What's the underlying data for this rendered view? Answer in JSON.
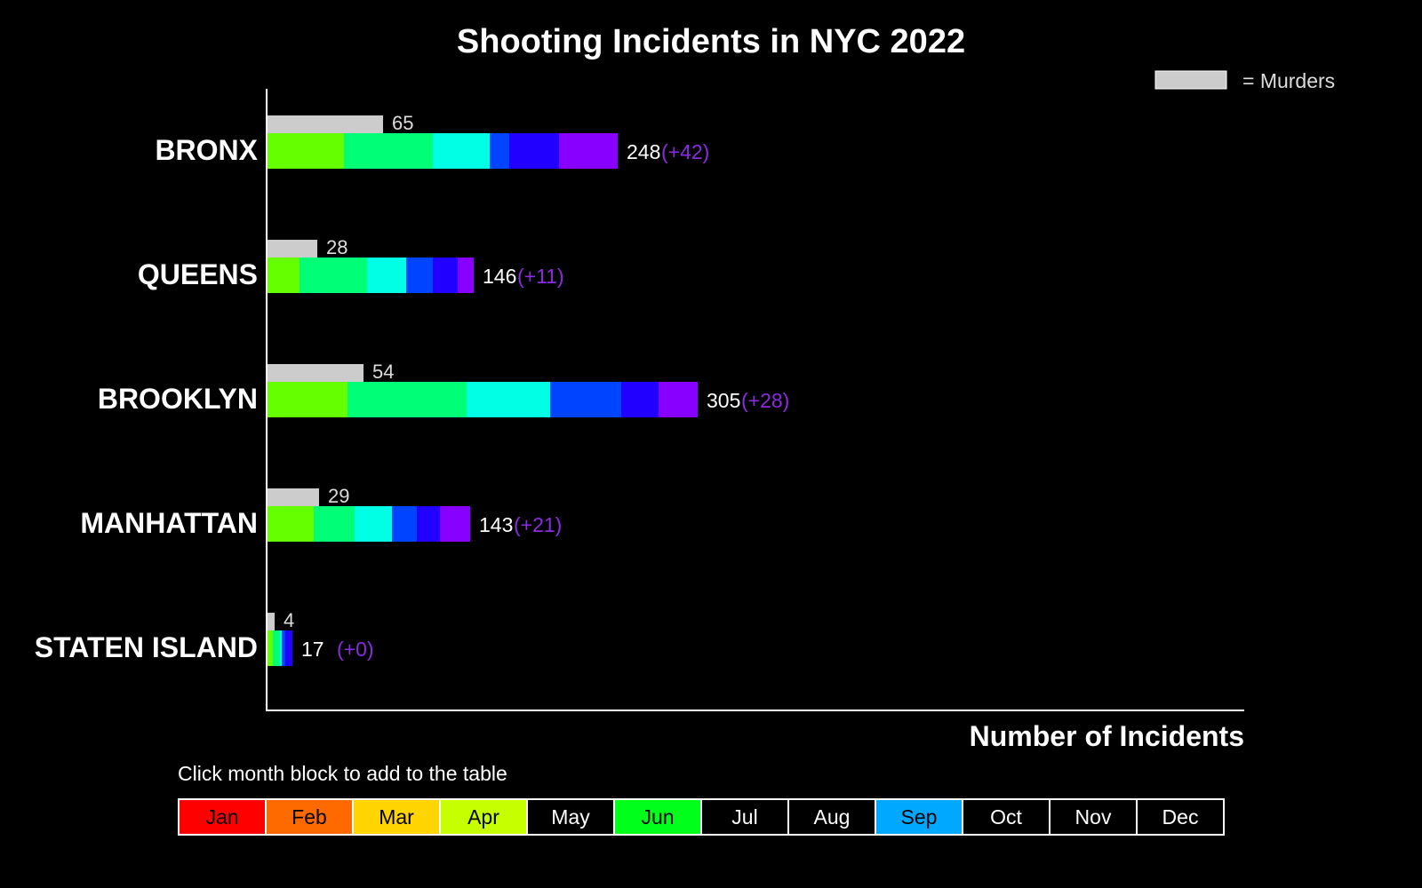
{
  "chart_data": {
    "type": "bar",
    "title": "Shooting Incidents in NYC 2022",
    "xlabel": "Number of Incidents",
    "ylabel": "",
    "legend": {
      "label": "= Murders",
      "color": "#cccccc",
      "placement": "top-right"
    },
    "categories": [
      "BRONX",
      "QUEENS",
      "BROOKLYN",
      "MANHATTAN",
      "STATEN ISLAND"
    ],
    "months_shown": [
      "Apr",
      "May",
      "Jun",
      "Jul",
      "Aug",
      "Sep"
    ],
    "segment_colors": [
      "#66ff00",
      "#00ff77",
      "#00ffe5",
      "#0044ff",
      "#2200ff",
      "#8800ff"
    ],
    "segments": [
      [
        43,
        50,
        32,
        11,
        28,
        33
      ],
      [
        18,
        38,
        22,
        15,
        14,
        9
      ],
      [
        45,
        67,
        47,
        40,
        21,
        22
      ],
      [
        26,
        23,
        21,
        14,
        13,
        17
      ],
      [
        3,
        4,
        1,
        2,
        4,
        0
      ]
    ],
    "totals": [
      248,
      146,
      305,
      143,
      17
    ],
    "totals_labels": [
      "248",
      "146",
      "305",
      "143",
      "17"
    ],
    "increments": [
      "(+42)",
      "(+11)",
      "(+28)",
      "(+21)",
      "(+0)"
    ],
    "murders": [
      65,
      28,
      54,
      29,
      4
    ],
    "xlim": [
      0,
      550
    ]
  },
  "table": {
    "hint": "Click month block to add to the table",
    "months": [
      {
        "label": "Jan",
        "bg": "#ff0000",
        "fg": "#000000"
      },
      {
        "label": "Feb",
        "bg": "#ff6a00",
        "fg": "#000000"
      },
      {
        "label": "Mar",
        "bg": "#ffd400",
        "fg": "#000000"
      },
      {
        "label": "Apr",
        "bg": "#c6ff00",
        "fg": "#000000"
      },
      {
        "label": "May",
        "bg": "#000000",
        "fg": "#ffffff"
      },
      {
        "label": "Jun",
        "bg": "#00ff1a",
        "fg": "#000000"
      },
      {
        "label": "Jul",
        "bg": "#000000",
        "fg": "#ffffff"
      },
      {
        "label": "Aug",
        "bg": "#000000",
        "fg": "#ffffff"
      },
      {
        "label": "Sep",
        "bg": "#00a8ff",
        "fg": "#000000"
      },
      {
        "label": "Oct",
        "bg": "#000000",
        "fg": "#ffffff"
      },
      {
        "label": "Nov",
        "bg": "#000000",
        "fg": "#ffffff"
      },
      {
        "label": "Dec",
        "bg": "#000000",
        "fg": "#ffffff"
      }
    ]
  }
}
